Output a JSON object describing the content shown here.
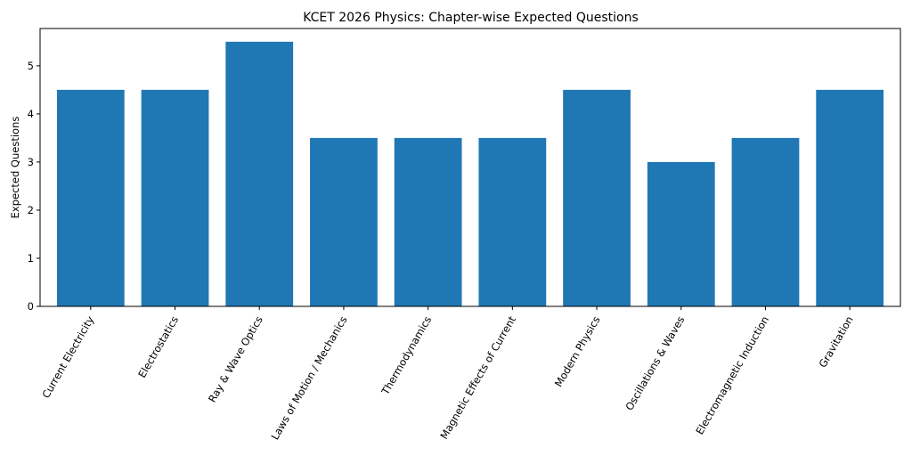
{
  "chart_data": {
    "type": "bar",
    "title": "KCET 2026 Physics: Chapter-wise Expected Questions",
    "xlabel": "",
    "ylabel": "Expected Questions",
    "categories": [
      "Current Electricity",
      "Electrostatics",
      "Ray & Wave Optics",
      "Laws of Motion / Mechanics",
      "Thermodynamics",
      "Magnetic Effects of Current",
      "Modern Physics",
      "Oscillations & Waves",
      "Electromagnetic Induction",
      "Gravitation"
    ],
    "values": [
      4.5,
      4.5,
      5.5,
      3.5,
      3.5,
      3.5,
      4.5,
      3.0,
      3.5,
      4.5
    ],
    "ylim": [
      0,
      5.775
    ],
    "yticks": [
      0,
      1,
      2,
      3,
      4,
      5
    ],
    "grid": false,
    "colors": {
      "bar": "#1f77b4"
    }
  }
}
